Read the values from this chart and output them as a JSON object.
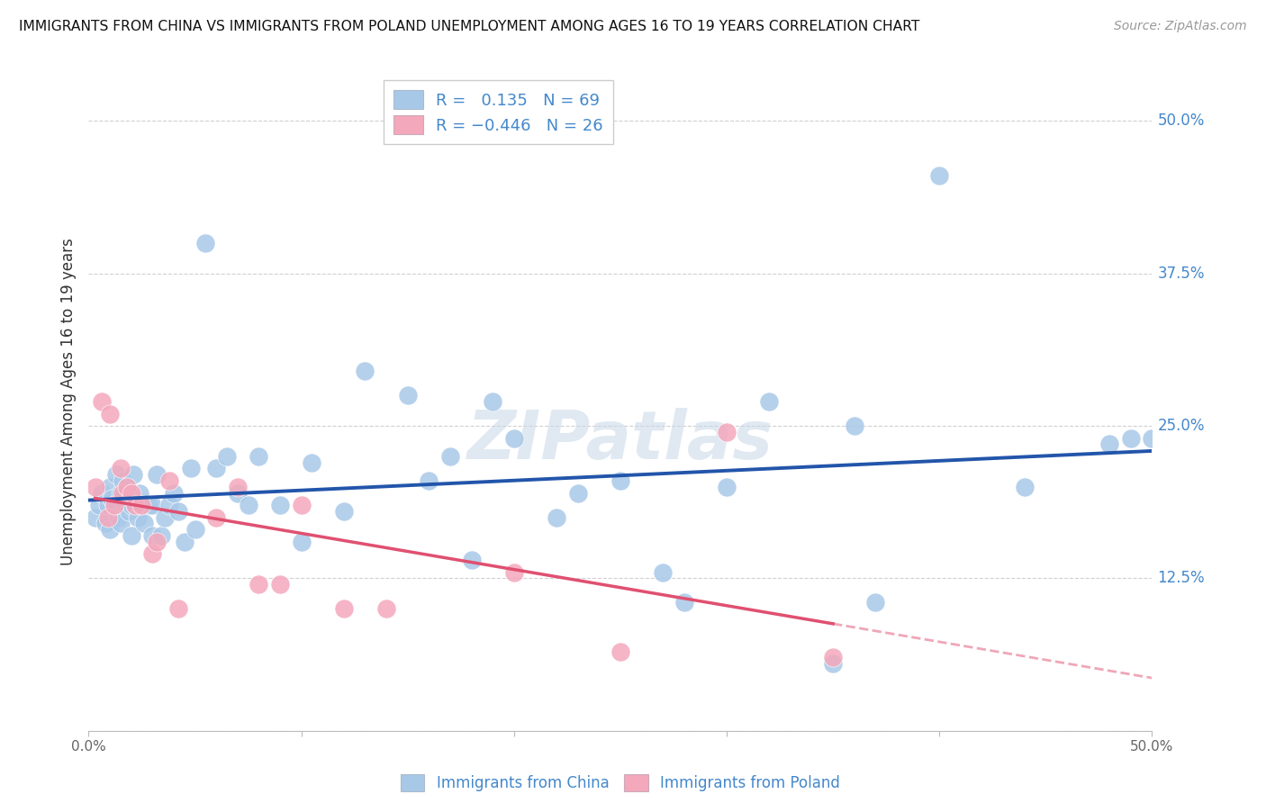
{
  "title": "IMMIGRANTS FROM CHINA VS IMMIGRANTS FROM POLAND UNEMPLOYMENT AMONG AGES 16 TO 19 YEARS CORRELATION CHART",
  "source": "Source: ZipAtlas.com",
  "ylabel": "Unemployment Among Ages 16 to 19 years",
  "xlim": [
    0.0,
    0.5
  ],
  "ylim": [
    0.0,
    0.54
  ],
  "yticks": [
    0.0,
    0.125,
    0.25,
    0.375,
    0.5
  ],
  "ytick_labels": [
    "",
    "12.5%",
    "25.0%",
    "37.5%",
    "50.0%"
  ],
  "xticks": [
    0.0,
    0.1,
    0.2,
    0.3,
    0.4,
    0.5
  ],
  "xtick_labels": [
    "0.0%",
    "",
    "",
    "",
    "",
    "50.0%"
  ],
  "china_R": 0.135,
  "china_N": 69,
  "poland_R": -0.446,
  "poland_N": 26,
  "china_color": "#a8c8e8",
  "china_line_color": "#2255aa",
  "poland_color": "#f4a8bc",
  "poland_line_color": "#e05070",
  "background_color": "#ffffff",
  "grid_color": "#cccccc",
  "china_x": [
    0.003,
    0.005,
    0.006,
    0.008,
    0.009,
    0.01,
    0.01,
    0.011,
    0.012,
    0.013,
    0.014,
    0.015,
    0.015,
    0.016,
    0.017,
    0.018,
    0.019,
    0.02,
    0.02,
    0.021,
    0.022,
    0.023,
    0.024,
    0.025,
    0.026,
    0.028,
    0.03,
    0.03,
    0.032,
    0.034,
    0.036,
    0.038,
    0.04,
    0.042,
    0.045,
    0.048,
    0.05,
    0.055,
    0.06,
    0.065,
    0.07,
    0.075,
    0.08,
    0.09,
    0.1,
    0.105,
    0.12,
    0.13,
    0.15,
    0.16,
    0.17,
    0.18,
    0.19,
    0.2,
    0.22,
    0.23,
    0.25,
    0.27,
    0.28,
    0.3,
    0.32,
    0.35,
    0.36,
    0.37,
    0.4,
    0.44,
    0.48,
    0.49,
    0.5
  ],
  "china_y": [
    0.175,
    0.185,
    0.195,
    0.17,
    0.185,
    0.2,
    0.165,
    0.19,
    0.185,
    0.21,
    0.175,
    0.195,
    0.17,
    0.205,
    0.185,
    0.2,
    0.18,
    0.185,
    0.16,
    0.21,
    0.185,
    0.175,
    0.195,
    0.185,
    0.17,
    0.185,
    0.185,
    0.16,
    0.21,
    0.16,
    0.175,
    0.185,
    0.195,
    0.18,
    0.155,
    0.215,
    0.165,
    0.4,
    0.215,
    0.225,
    0.195,
    0.185,
    0.225,
    0.185,
    0.155,
    0.22,
    0.18,
    0.295,
    0.275,
    0.205,
    0.225,
    0.14,
    0.27,
    0.24,
    0.175,
    0.195,
    0.205,
    0.13,
    0.105,
    0.2,
    0.27,
    0.055,
    0.25,
    0.105,
    0.455,
    0.2,
    0.235,
    0.24,
    0.24
  ],
  "poland_x": [
    0.003,
    0.006,
    0.009,
    0.01,
    0.012,
    0.015,
    0.016,
    0.018,
    0.02,
    0.022,
    0.025,
    0.03,
    0.032,
    0.038,
    0.042,
    0.06,
    0.07,
    0.08,
    0.09,
    0.1,
    0.12,
    0.14,
    0.2,
    0.25,
    0.3,
    0.35
  ],
  "poland_y": [
    0.2,
    0.27,
    0.175,
    0.26,
    0.185,
    0.215,
    0.195,
    0.2,
    0.195,
    0.185,
    0.185,
    0.145,
    0.155,
    0.205,
    0.1,
    0.175,
    0.2,
    0.12,
    0.12,
    0.185,
    0.1,
    0.1,
    0.13,
    0.065,
    0.245,
    0.06
  ]
}
